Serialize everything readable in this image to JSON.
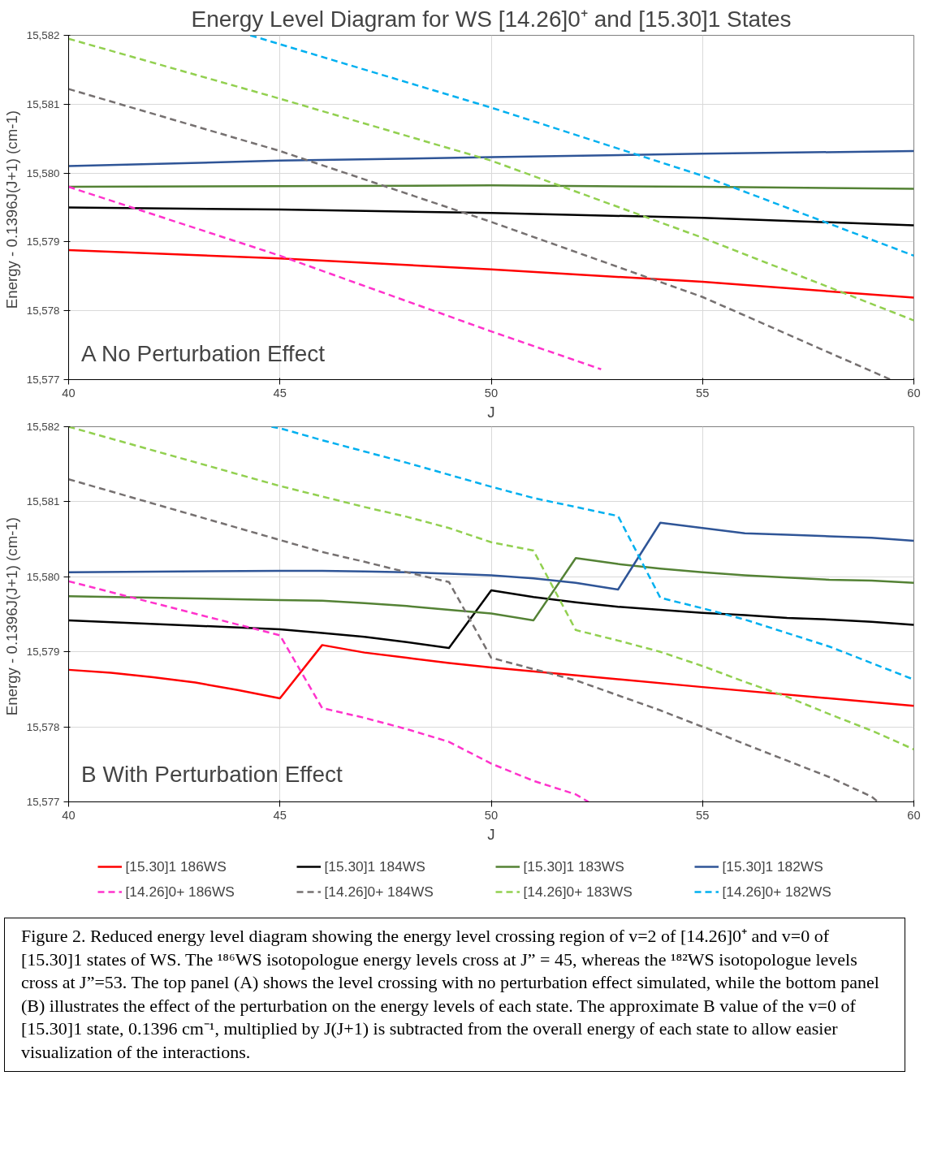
{
  "chart_data": [
    {
      "type": "line",
      "title": "Energy Level Diagram for WS [14.26]0⁺ and [15.30]1 States",
      "xlabel": "J",
      "ylabel": "Energy - 0.1396J(J+1)  (cm-1)",
      "annotations": [
        "A  No Perturbation Effect"
      ],
      "xlim": [
        40,
        60
      ],
      "ylim": [
        15577,
        15582
      ],
      "xticks": [
        40,
        45,
        50,
        55,
        60
      ],
      "yticks": [
        {
          "value": 15577,
          "label": "15,577"
        },
        {
          "value": 15578,
          "label": "15,578"
        },
        {
          "value": 15579,
          "label": "15,579"
        },
        {
          "value": 15580,
          "label": "15,580"
        },
        {
          "value": 15581,
          "label": "15,581"
        },
        {
          "value": 15582,
          "label": "15,582"
        }
      ],
      "grid": true,
      "legend": false,
      "marker": "none",
      "series": [
        {
          "color": "#ff0000",
          "line_style": "solid",
          "x": [
            40,
            45,
            50,
            55,
            60
          ],
          "values": [
            15578.88,
            15578.76,
            15578.6,
            15578.42,
            15578.19
          ]
        },
        {
          "color": "#000000",
          "line_style": "solid",
          "x": [
            40,
            45,
            50,
            55,
            60
          ],
          "values": [
            15579.5,
            15579.47,
            15579.42,
            15579.35,
            15579.24
          ]
        },
        {
          "color": "#548235",
          "line_style": "solid",
          "x": [
            40,
            45,
            50,
            55,
            60
          ],
          "values": [
            15579.8,
            15579.81,
            15579.82,
            15579.8,
            15579.77
          ]
        },
        {
          "color": "#2f5597",
          "line_style": "solid",
          "x": [
            40,
            45,
            50,
            55,
            60
          ],
          "values": [
            15580.1,
            15580.18,
            15580.23,
            15580.28,
            15580.32
          ]
        },
        {
          "color": "#ff33cc",
          "line_style": "dashed",
          "x": [
            40,
            45,
            50,
            52.6
          ],
          "values": [
            15579.8,
            15578.8,
            15577.7,
            15577.15
          ]
        },
        {
          "color": "#767171",
          "line_style": "dashed",
          "x": [
            40,
            45,
            50,
            55,
            59.45
          ],
          "values": [
            15581.22,
            15580.32,
            15579.29,
            15578.2,
            15577
          ]
        },
        {
          "color": "#92d050",
          "line_style": "dashed",
          "x": [
            40,
            45,
            50,
            55,
            60
          ],
          "values": [
            15581.95,
            15581.08,
            15580.18,
            15579.06,
            15577.86
          ]
        },
        {
          "color": "#00b0f0",
          "line_style": "dashed",
          "x": [
            44.3,
            50,
            55,
            60
          ],
          "values": [
            15582,
            15580.95,
            15579.96,
            15578.8
          ]
        }
      ]
    },
    {
      "type": "line",
      "xlabel": "J",
      "ylabel": "Energy - 0.1396J(J+1)  (cm-1)",
      "annotations": [
        "B  With Perturbation Effect",
        "Figure 2.  Reduced energy level diagram showing the energy level crossing region of v=2 of [14.26]0⁺ and v=0 of [15.30]1 states of WS.  The ¹⁸⁶WS isotopologue energy levels cross at J” = 45, whereas the ¹⁸²WS isotopologue levels cross at J”=53. The top panel (A) shows the level crossing with no perturbation effect simulated, while the bottom panel (B) illustrates the effect of the perturbation on the energy levels of each state.  The approximate B value of the v=0 of [15.30]1 state, 0.1396 cm⁻¹, multiplied by J(J+1) is subtracted from the overall energy of each state to allow easier visualization of the interactions."
      ],
      "xlim": [
        40,
        60
      ],
      "ylim": [
        15577,
        15582
      ],
      "xticks": [
        40,
        45,
        50,
        55,
        60
      ],
      "yticks": [
        {
          "value": 15577,
          "label": "15,577"
        },
        {
          "value": 15578,
          "label": "15,578"
        },
        {
          "value": 15579,
          "label": "15,579"
        },
        {
          "value": 15580,
          "label": "15,580"
        },
        {
          "value": 15581,
          "label": "15,581"
        },
        {
          "value": 15582,
          "label": "15,582"
        }
      ],
      "grid": true,
      "legend": "bottom",
      "marker": "none",
      "series": [
        {
          "name": "[15.30]1 186WS",
          "color": "#ff0000",
          "line_style": "solid",
          "x": [
            40,
            41,
            42,
            43,
            44,
            45,
            46,
            47,
            48,
            49,
            50,
            55,
            60
          ],
          "values": [
            15578.76,
            15578.72,
            15578.66,
            15578.59,
            15578.49,
            15578.38,
            15579.09,
            15578.99,
            15578.92,
            15578.85,
            15578.79,
            15578.53,
            15578.28
          ]
        },
        {
          "name": "[15.30]1 184WS",
          "color": "#000000",
          "line_style": "solid",
          "x": [
            40,
            45,
            46,
            47,
            48,
            49,
            50,
            51,
            52,
            53,
            54,
            55,
            56,
            57,
            58,
            59,
            60
          ],
          "values": [
            15579.42,
            15579.3,
            15579.25,
            15579.2,
            15579.13,
            15579.05,
            15579.82,
            15579.73,
            15579.66,
            15579.6,
            15579.56,
            15579.52,
            15579.49,
            15579.45,
            15579.43,
            15579.4,
            15579.36
          ]
        },
        {
          "name": "[15.30]1 183WS",
          "color": "#548235",
          "line_style": "solid",
          "x": [
            40,
            45,
            46,
            47,
            48,
            49,
            50,
            51,
            52,
            53,
            54,
            55,
            56,
            57,
            58,
            59,
            60
          ],
          "values": [
            15579.74,
            15579.69,
            15579.68,
            15579.65,
            15579.61,
            15579.56,
            15579.51,
            15579.42,
            15580.25,
            15580.17,
            15580.11,
            15580.06,
            15580.02,
            15579.99,
            15579.96,
            15579.95,
            15579.92
          ]
        },
        {
          "name": "[15.30]1 182WS",
          "color": "#2f5597",
          "line_style": "solid",
          "x": [
            40,
            45,
            46,
            47,
            48,
            49,
            50,
            51,
            52,
            53,
            54,
            55,
            56,
            57,
            58,
            59,
            60
          ],
          "values": [
            15580.06,
            15580.08,
            15580.08,
            15580.07,
            15580.06,
            15580.04,
            15580.02,
            15579.98,
            15579.92,
            15579.83,
            15580.72,
            15580.65,
            15580.58,
            15580.56,
            15580.54,
            15580.52,
            15580.48
          ]
        },
        {
          "name": "[14.26]0+ 186WS",
          "color": "#ff33cc",
          "line_style": "dashed",
          "x": [
            40,
            45,
            46,
            47,
            48,
            49,
            50,
            51,
            52,
            52.3
          ],
          "values": [
            15579.94,
            15579.22,
            15578.25,
            15578.12,
            15577.97,
            15577.8,
            15577.51,
            15577.28,
            15577.1,
            15577
          ]
        },
        {
          "name": "[14.26]0+ 184WS",
          "color": "#767171",
          "line_style": "dashed",
          "x": [
            40,
            45,
            46,
            47,
            48,
            49,
            50,
            51,
            52,
            53,
            54,
            55,
            56,
            57,
            58,
            59,
            59.15
          ],
          "values": [
            15581.3,
            15580.49,
            15580.33,
            15580.2,
            15580.06,
            15579.93,
            15578.92,
            15578.77,
            15578.62,
            15578.42,
            15578.22,
            15578.0,
            15577.77,
            15577.55,
            15577.33,
            15577.07,
            15577
          ]
        },
        {
          "name": "[14.26]0+ 183WS",
          "color": "#92d050",
          "line_style": "dashed",
          "x": [
            40,
            45,
            46,
            47,
            48,
            49,
            50,
            51,
            52,
            53,
            54,
            55,
            56,
            57,
            58,
            59,
            60
          ],
          "values": [
            15582.0,
            15581.21,
            15581.07,
            15580.93,
            15580.8,
            15580.65,
            15580.46,
            15580.35,
            15579.29,
            15579.15,
            15579.0,
            15578.81,
            15578.6,
            15578.4,
            15578.17,
            15577.95,
            15577.7
          ]
        },
        {
          "name": "[14.26]0+ 182WS",
          "color": "#00b0f0",
          "line_style": "dashed",
          "x": [
            44.8,
            45,
            46,
            47,
            48,
            49,
            50,
            51,
            52,
            53,
            54,
            55,
            56,
            57,
            58,
            59,
            60
          ],
          "values": [
            15582,
            15581.98,
            15581.82,
            15581.67,
            15581.52,
            15581.36,
            15581.2,
            15581.05,
            15580.93,
            15580.81,
            15579.72,
            15579.58,
            15579.43,
            15579.25,
            15579.07,
            15578.85,
            15578.63
          ]
        }
      ]
    }
  ]
}
